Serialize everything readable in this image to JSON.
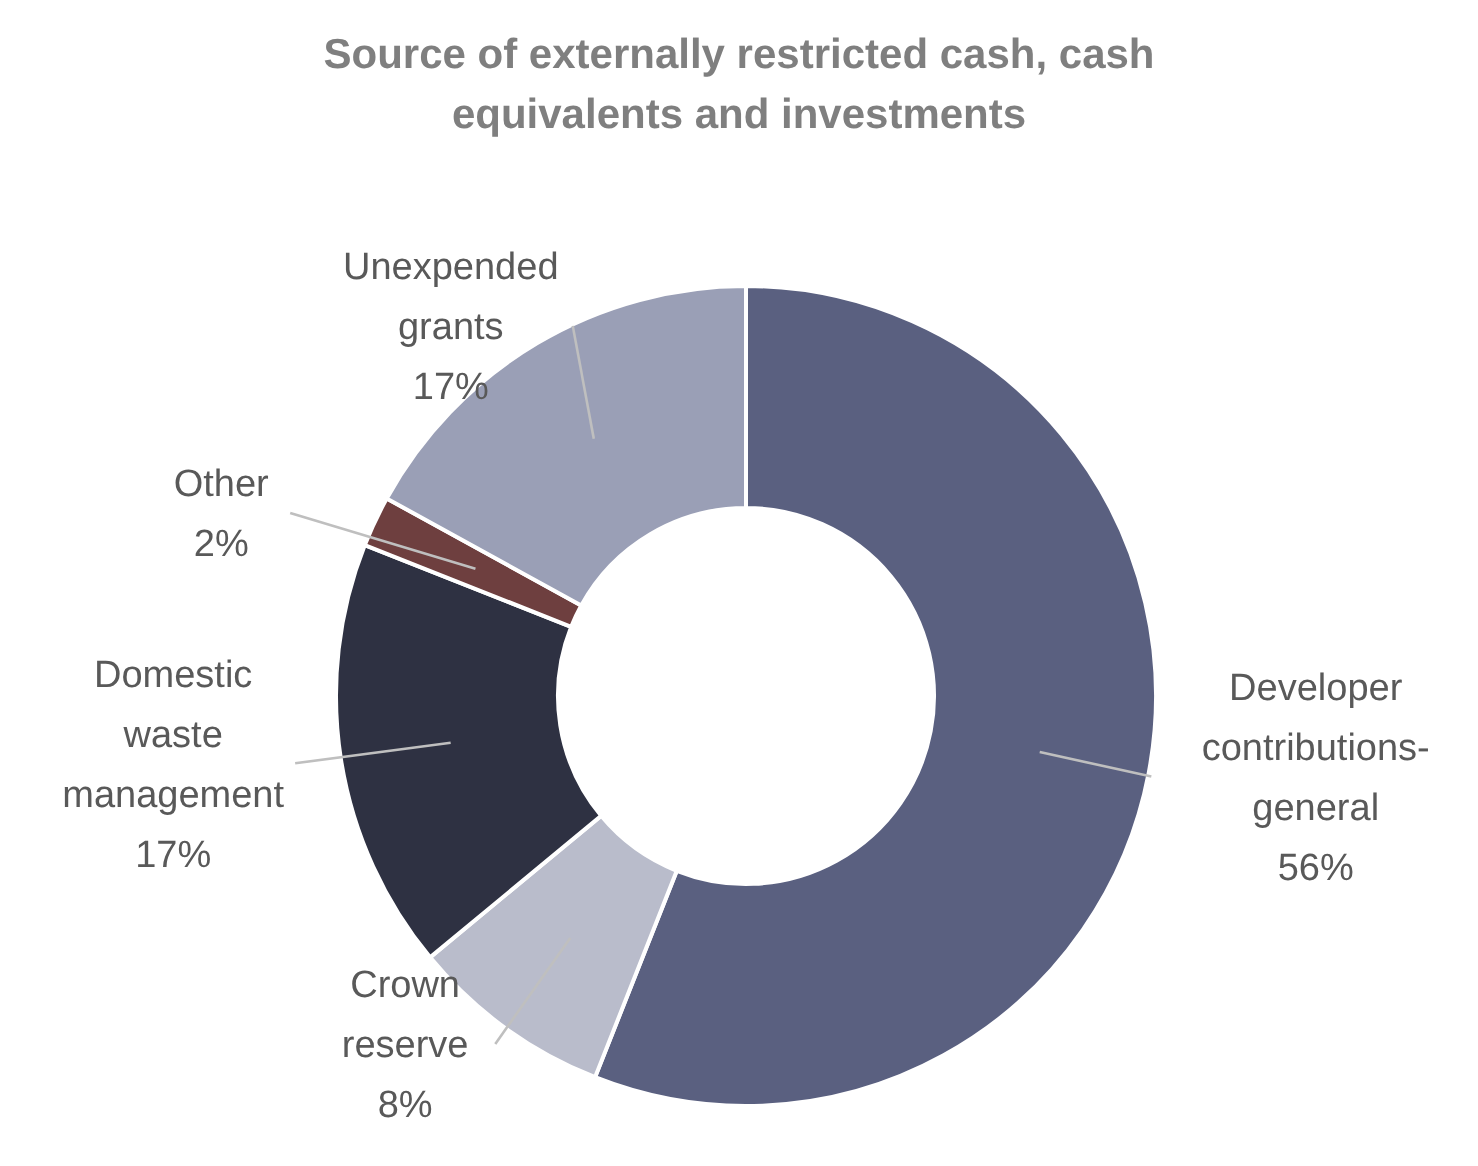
{
  "chart_data": {
    "type": "donut",
    "title": "Source of externally restricted cash, cash equivalents and investments",
    "categories": [
      "Developer contributions-general",
      "Crown reserve",
      "Domestic waste management",
      "Other",
      "Unexpended grants"
    ],
    "values": [
      56,
      8,
      17,
      2,
      17
    ],
    "colors": [
      "#5a6080",
      "#b9bccb",
      "#2e3142",
      "#6e3f3f",
      "#9a9fb6"
    ],
    "value_labels": [
      "56%",
      "8%",
      "17%",
      "2%",
      "17%"
    ]
  }
}
